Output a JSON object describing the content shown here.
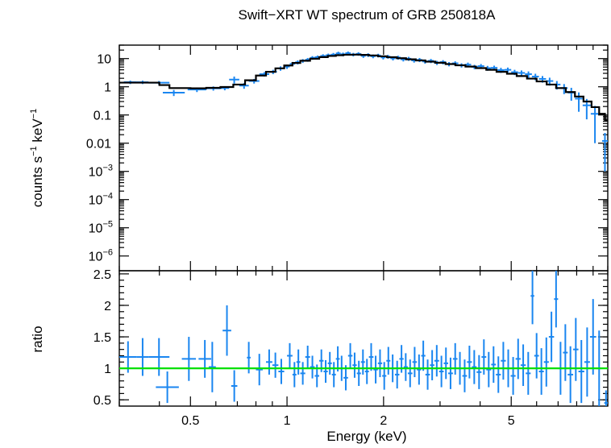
{
  "chart_data": [
    {
      "panel": "spectrum",
      "type": "scatter",
      "title": "Swift−XRT WT spectrum of GRB 250818A",
      "ylabel_main": "counts s",
      "ylabel_sup1": "−1",
      "ylabel_mid": " keV",
      "ylabel_sup2": "−1",
      "xscale": "log",
      "yscale": "log",
      "xlim": [
        0.3,
        10
      ],
      "ylim": [
        3e-07,
        30
      ],
      "y_ticks": [
        {
          "value": 10,
          "base": "10",
          "exp": ""
        },
        {
          "value": 1,
          "base": "1",
          "exp": ""
        },
        {
          "value": 0.1,
          "base": "0.1",
          "exp": ""
        },
        {
          "value": 0.01,
          "base": "0.01",
          "exp": ""
        },
        {
          "value": 0.001,
          "base": "10",
          "exp": "−3"
        },
        {
          "value": 0.0001,
          "base": "10",
          "exp": "−4"
        },
        {
          "value": 1e-05,
          "base": "10",
          "exp": "−5"
        },
        {
          "value": 1e-06,
          "base": "10",
          "exp": "−6"
        }
      ],
      "colors": {
        "data": "#1a86f0",
        "model": "#000000"
      },
      "data_points": [
        [
          0.31,
          0.34,
          1.45,
          0.2
        ],
        [
          0.34,
          0.37,
          1.45,
          0.2
        ],
        [
          0.37,
          0.43,
          1.4,
          0.2
        ],
        [
          0.41,
          0.48,
          0.62,
          0.15
        ],
        [
          0.49,
          0.56,
          0.8,
          0.15
        ],
        [
          0.56,
          0.62,
          0.88,
          0.15
        ],
        [
          0.62,
          0.66,
          0.9,
          0.15
        ],
        [
          0.66,
          0.71,
          1.8,
          0.5
        ],
        [
          0.71,
          0.76,
          1.1,
          0.25
        ],
        [
          0.76,
          0.82,
          1.6,
          0.3
        ],
        [
          0.82,
          0.88,
          2.8,
          0.5
        ],
        [
          0.88,
          0.93,
          3.4,
          0.6
        ],
        [
          0.93,
          0.98,
          4.5,
          0.8
        ],
        [
          0.98,
          1.02,
          5.2,
          0.9
        ],
        [
          1.02,
          1.06,
          6.5,
          1.1
        ],
        [
          1.06,
          1.1,
          7.4,
          1.2
        ],
        [
          1.1,
          1.14,
          8.3,
          1.3
        ],
        [
          1.14,
          1.18,
          9.1,
          1.4
        ],
        [
          1.18,
          1.22,
          10.6,
          1.6
        ],
        [
          1.22,
          1.27,
          11.2,
          1.6
        ],
        [
          1.27,
          1.32,
          12.4,
          1.8
        ],
        [
          1.32,
          1.37,
          13.1,
          1.9
        ],
        [
          1.37,
          1.42,
          13.8,
          2.0
        ],
        [
          1.42,
          1.47,
          15.3,
          2.2
        ],
        [
          1.47,
          1.52,
          14.2,
          2.1
        ],
        [
          1.52,
          1.58,
          15.6,
          2.2
        ],
        [
          1.58,
          1.64,
          13.9,
          2.0
        ],
        [
          1.64,
          1.7,
          14.7,
          2.1
        ],
        [
          1.7,
          1.76,
          12.5,
          1.9
        ],
        [
          1.76,
          1.82,
          13.4,
          2.0
        ],
        [
          1.82,
          1.89,
          12.1,
          1.8
        ],
        [
          1.89,
          1.96,
          12.9,
          1.9
        ],
        [
          1.96,
          2.03,
          11.0,
          1.7
        ],
        [
          2.03,
          2.1,
          11.7,
          1.8
        ],
        [
          2.1,
          2.18,
          10.2,
          1.6
        ],
        [
          2.18,
          2.26,
          10.9,
          1.7
        ],
        [
          2.26,
          2.35,
          9.4,
          1.5
        ],
        [
          2.35,
          2.44,
          9.9,
          1.6
        ],
        [
          2.44,
          2.54,
          8.6,
          1.4
        ],
        [
          2.54,
          2.64,
          9.0,
          1.5
        ],
        [
          2.64,
          2.75,
          7.9,
          1.3
        ],
        [
          2.75,
          2.87,
          8.3,
          1.4
        ],
        [
          2.87,
          3.0,
          7.1,
          1.2
        ],
        [
          3.0,
          3.13,
          7.5,
          1.3
        ],
        [
          3.13,
          3.27,
          6.4,
          1.1
        ],
        [
          3.27,
          3.42,
          6.8,
          1.2
        ],
        [
          3.42,
          3.58,
          5.8,
          1.0
        ],
        [
          3.58,
          3.75,
          6.1,
          1.1
        ],
        [
          3.75,
          3.93,
          5.1,
          0.9
        ],
        [
          3.93,
          4.12,
          5.4,
          1.0
        ],
        [
          4.12,
          4.32,
          4.6,
          0.9
        ],
        [
          4.32,
          4.53,
          4.7,
          0.9
        ],
        [
          4.53,
          4.76,
          3.9,
          0.8
        ],
        [
          4.76,
          5.0,
          4.0,
          0.8
        ],
        [
          5.0,
          5.25,
          3.3,
          0.7
        ],
        [
          5.25,
          5.52,
          3.1,
          0.7
        ],
        [
          5.52,
          5.8,
          2.8,
          0.7
        ],
        [
          5.8,
          6.1,
          2.3,
          0.6
        ],
        [
          6.1,
          6.42,
          1.9,
          0.5
        ],
        [
          6.42,
          6.76,
          1.6,
          0.5
        ],
        [
          6.76,
          7.12,
          1.2,
          0.4
        ],
        [
          7.12,
          7.5,
          0.9,
          0.35
        ],
        [
          7.5,
          7.9,
          0.62,
          0.3
        ],
        [
          7.9,
          8.35,
          0.38,
          0.25
        ],
        [
          8.35,
          8.85,
          0.22,
          0.15
        ],
        [
          8.85,
          9.4,
          0.11,
          0.1
        ],
        [
          9.6,
          10.0,
          0.012,
          0.011
        ]
      ],
      "model_steps": [
        [
          0.3,
          1.4
        ],
        [
          0.4,
          1.15
        ],
        [
          0.43,
          0.9
        ],
        [
          0.5,
          0.88
        ],
        [
          0.56,
          0.92
        ],
        [
          0.62,
          0.98
        ],
        [
          0.68,
          1.2
        ],
        [
          0.74,
          1.7
        ],
        [
          0.8,
          2.5
        ],
        [
          0.86,
          3.4
        ],
        [
          0.92,
          4.5
        ],
        [
          0.98,
          5.7
        ],
        [
          1.04,
          7.0
        ],
        [
          1.1,
          8.4
        ],
        [
          1.18,
          9.9
        ],
        [
          1.26,
          11.3
        ],
        [
          1.34,
          12.4
        ],
        [
          1.42,
          13.2
        ],
        [
          1.5,
          13.7
        ],
        [
          1.6,
          13.8
        ],
        [
          1.7,
          13.5
        ],
        [
          1.8,
          12.9
        ],
        [
          1.92,
          12.1
        ],
        [
          2.05,
          11.2
        ],
        [
          2.2,
          10.3
        ],
        [
          2.35,
          9.4
        ],
        [
          2.52,
          8.6
        ],
        [
          2.7,
          7.8
        ],
        [
          2.9,
          7.1
        ],
        [
          3.12,
          6.4
        ],
        [
          3.35,
          5.8
        ],
        [
          3.6,
          5.2
        ],
        [
          3.88,
          4.6
        ],
        [
          4.18,
          4.0
        ],
        [
          4.5,
          3.4
        ],
        [
          4.85,
          2.9
        ],
        [
          5.2,
          2.4
        ],
        [
          5.6,
          1.95
        ],
        [
          6.0,
          1.55
        ],
        [
          6.45,
          1.2
        ],
        [
          6.9,
          0.9
        ],
        [
          7.4,
          0.65
        ],
        [
          7.9,
          0.45
        ],
        [
          8.4,
          0.3
        ],
        [
          8.9,
          0.19
        ],
        [
          9.4,
          0.11
        ],
        [
          9.8,
          0.065
        ],
        [
          10.0,
          0.065
        ]
      ]
    },
    {
      "panel": "ratio",
      "type": "scatter",
      "xlabel": "Energy (keV)",
      "ylabel": "ratio",
      "xscale": "log",
      "xlim": [
        0.3,
        10
      ],
      "ylim": [
        0.4,
        2.55
      ],
      "y_ticks": [
        {
          "value": 0.5,
          "label": "0.5"
        },
        {
          "value": 1,
          "label": "1"
        },
        {
          "value": 1.5,
          "label": "1.5"
        },
        {
          "value": 2,
          "label": "2"
        },
        {
          "value": 2.5,
          "label": "2.5"
        }
      ],
      "x_ticks": [
        {
          "value": 0.5,
          "label": "0.5"
        },
        {
          "value": 1,
          "label": "1"
        },
        {
          "value": 2,
          "label": "2"
        },
        {
          "value": 5,
          "label": "5"
        }
      ],
      "reference_line": 1,
      "colors": {
        "data": "#1a86f0",
        "reference": "#00e000"
      },
      "data_points": [
        [
          0.3,
          0.34,
          1.18,
          0.25
        ],
        [
          0.34,
          0.37,
          1.18,
          0.3
        ],
        [
          0.37,
          0.43,
          1.18,
          0.3
        ],
        [
          0.39,
          0.46,
          0.7,
          0.25
        ],
        [
          0.47,
          0.52,
          1.15,
          0.35
        ],
        [
          0.53,
          0.58,
          1.15,
          0.3
        ],
        [
          0.57,
          0.6,
          1.02,
          0.4
        ],
        [
          0.63,
          0.67,
          1.6,
          0.4
        ],
        [
          0.67,
          0.7,
          0.72,
          0.25
        ],
        [
          0.75,
          0.77,
          1.17,
          0.25
        ],
        [
          0.8,
          0.84,
          0.98,
          0.25
        ],
        [
          0.86,
          0.9,
          1.1,
          0.2
        ],
        [
          0.9,
          0.94,
          1.05,
          0.2
        ],
        [
          0.94,
          0.98,
          0.95,
          0.2
        ],
        [
          1.0,
          1.04,
          1.2,
          0.2
        ],
        [
          1.04,
          1.07,
          0.9,
          0.2
        ],
        [
          1.07,
          1.1,
          1.1,
          0.2
        ],
        [
          1.1,
          1.14,
          0.92,
          0.18
        ],
        [
          1.14,
          1.18,
          1.18,
          0.18
        ],
        [
          1.18,
          1.22,
          1.02,
          0.18
        ],
        [
          1.22,
          1.26,
          0.88,
          0.18
        ],
        [
          1.26,
          1.3,
          1.12,
          0.18
        ],
        [
          1.3,
          1.34,
          0.95,
          0.18
        ],
        [
          1.34,
          1.38,
          1.08,
          0.18
        ],
        [
          1.38,
          1.42,
          0.9,
          0.2
        ],
        [
          1.42,
          1.46,
          1.15,
          0.2
        ],
        [
          1.46,
          1.5,
          1.0,
          0.2
        ],
        [
          1.5,
          1.55,
          0.85,
          0.2
        ],
        [
          1.55,
          1.6,
          1.2,
          0.2
        ],
        [
          1.6,
          1.65,
          1.05,
          0.2
        ],
        [
          1.65,
          1.7,
          0.92,
          0.2
        ],
        [
          1.7,
          1.75,
          1.1,
          0.2
        ],
        [
          1.75,
          1.8,
          0.95,
          0.2
        ],
        [
          1.8,
          1.86,
          1.18,
          0.22
        ],
        [
          1.86,
          1.92,
          0.98,
          0.22
        ],
        [
          1.92,
          1.98,
          1.08,
          0.22
        ],
        [
          1.98,
          2.04,
          0.88,
          0.22
        ],
        [
          2.04,
          2.1,
          1.12,
          0.22
        ],
        [
          2.1,
          2.17,
          1.0,
          0.22
        ],
        [
          2.17,
          2.24,
          0.9,
          0.22
        ],
        [
          2.24,
          2.31,
          1.15,
          0.22
        ],
        [
          2.31,
          2.38,
          1.02,
          0.22
        ],
        [
          2.38,
          2.46,
          0.92,
          0.22
        ],
        [
          2.46,
          2.54,
          1.1,
          0.24
        ],
        [
          2.54,
          2.62,
          0.98,
          0.24
        ],
        [
          2.62,
          2.7,
          1.2,
          0.24
        ],
        [
          2.7,
          2.79,
          0.9,
          0.24
        ],
        [
          2.79,
          2.88,
          1.05,
          0.24
        ],
        [
          2.88,
          2.98,
          1.12,
          0.25
        ],
        [
          2.98,
          3.08,
          0.95,
          0.25
        ],
        [
          3.08,
          3.18,
          1.08,
          0.25
        ],
        [
          3.18,
          3.29,
          0.92,
          0.25
        ],
        [
          3.29,
          3.4,
          1.15,
          0.25
        ],
        [
          3.4,
          3.52,
          1.0,
          0.26
        ],
        [
          3.52,
          3.64,
          0.88,
          0.26
        ],
        [
          3.64,
          3.77,
          1.1,
          0.26
        ],
        [
          3.77,
          3.9,
          1.02,
          0.27
        ],
        [
          3.9,
          4.04,
          0.94,
          0.27
        ],
        [
          4.04,
          4.18,
          1.18,
          0.28
        ],
        [
          4.18,
          4.33,
          0.98,
          0.28
        ],
        [
          4.33,
          4.48,
          1.06,
          0.29
        ],
        [
          4.48,
          4.64,
          0.9,
          0.29
        ],
        [
          4.64,
          4.81,
          1.12,
          0.3
        ],
        [
          4.81,
          4.98,
          1.0,
          0.3
        ],
        [
          4.98,
          5.16,
          0.88,
          0.3
        ],
        [
          5.16,
          5.35,
          1.15,
          0.32
        ],
        [
          5.35,
          5.55,
          1.05,
          0.33
        ],
        [
          5.55,
          5.75,
          0.92,
          0.34
        ],
        [
          5.75,
          5.9,
          2.15,
          0.45
        ],
        [
          5.9,
          6.1,
          1.2,
          0.36
        ],
        [
          6.1,
          6.32,
          0.95,
          0.37
        ],
        [
          6.32,
          6.55,
          1.1,
          0.39
        ],
        [
          6.55,
          6.8,
          1.5,
          0.4
        ],
        [
          6.8,
          7.0,
          2.1,
          0.45
        ],
        [
          7.0,
          7.25,
          1.0,
          0.42
        ],
        [
          7.25,
          7.5,
          1.25,
          0.45
        ],
        [
          7.5,
          7.8,
          0.9,
          0.45
        ],
        [
          7.8,
          8.1,
          1.3,
          0.5
        ],
        [
          8.1,
          8.45,
          0.95,
          0.5
        ],
        [
          8.45,
          8.8,
          1.1,
          0.55
        ],
        [
          8.8,
          9.2,
          1.5,
          0.6
        ],
        [
          9.2,
          9.6,
          1.0,
          0.6
        ],
        [
          9.75,
          10.0,
          0.45,
          0.2
        ]
      ]
    }
  ]
}
